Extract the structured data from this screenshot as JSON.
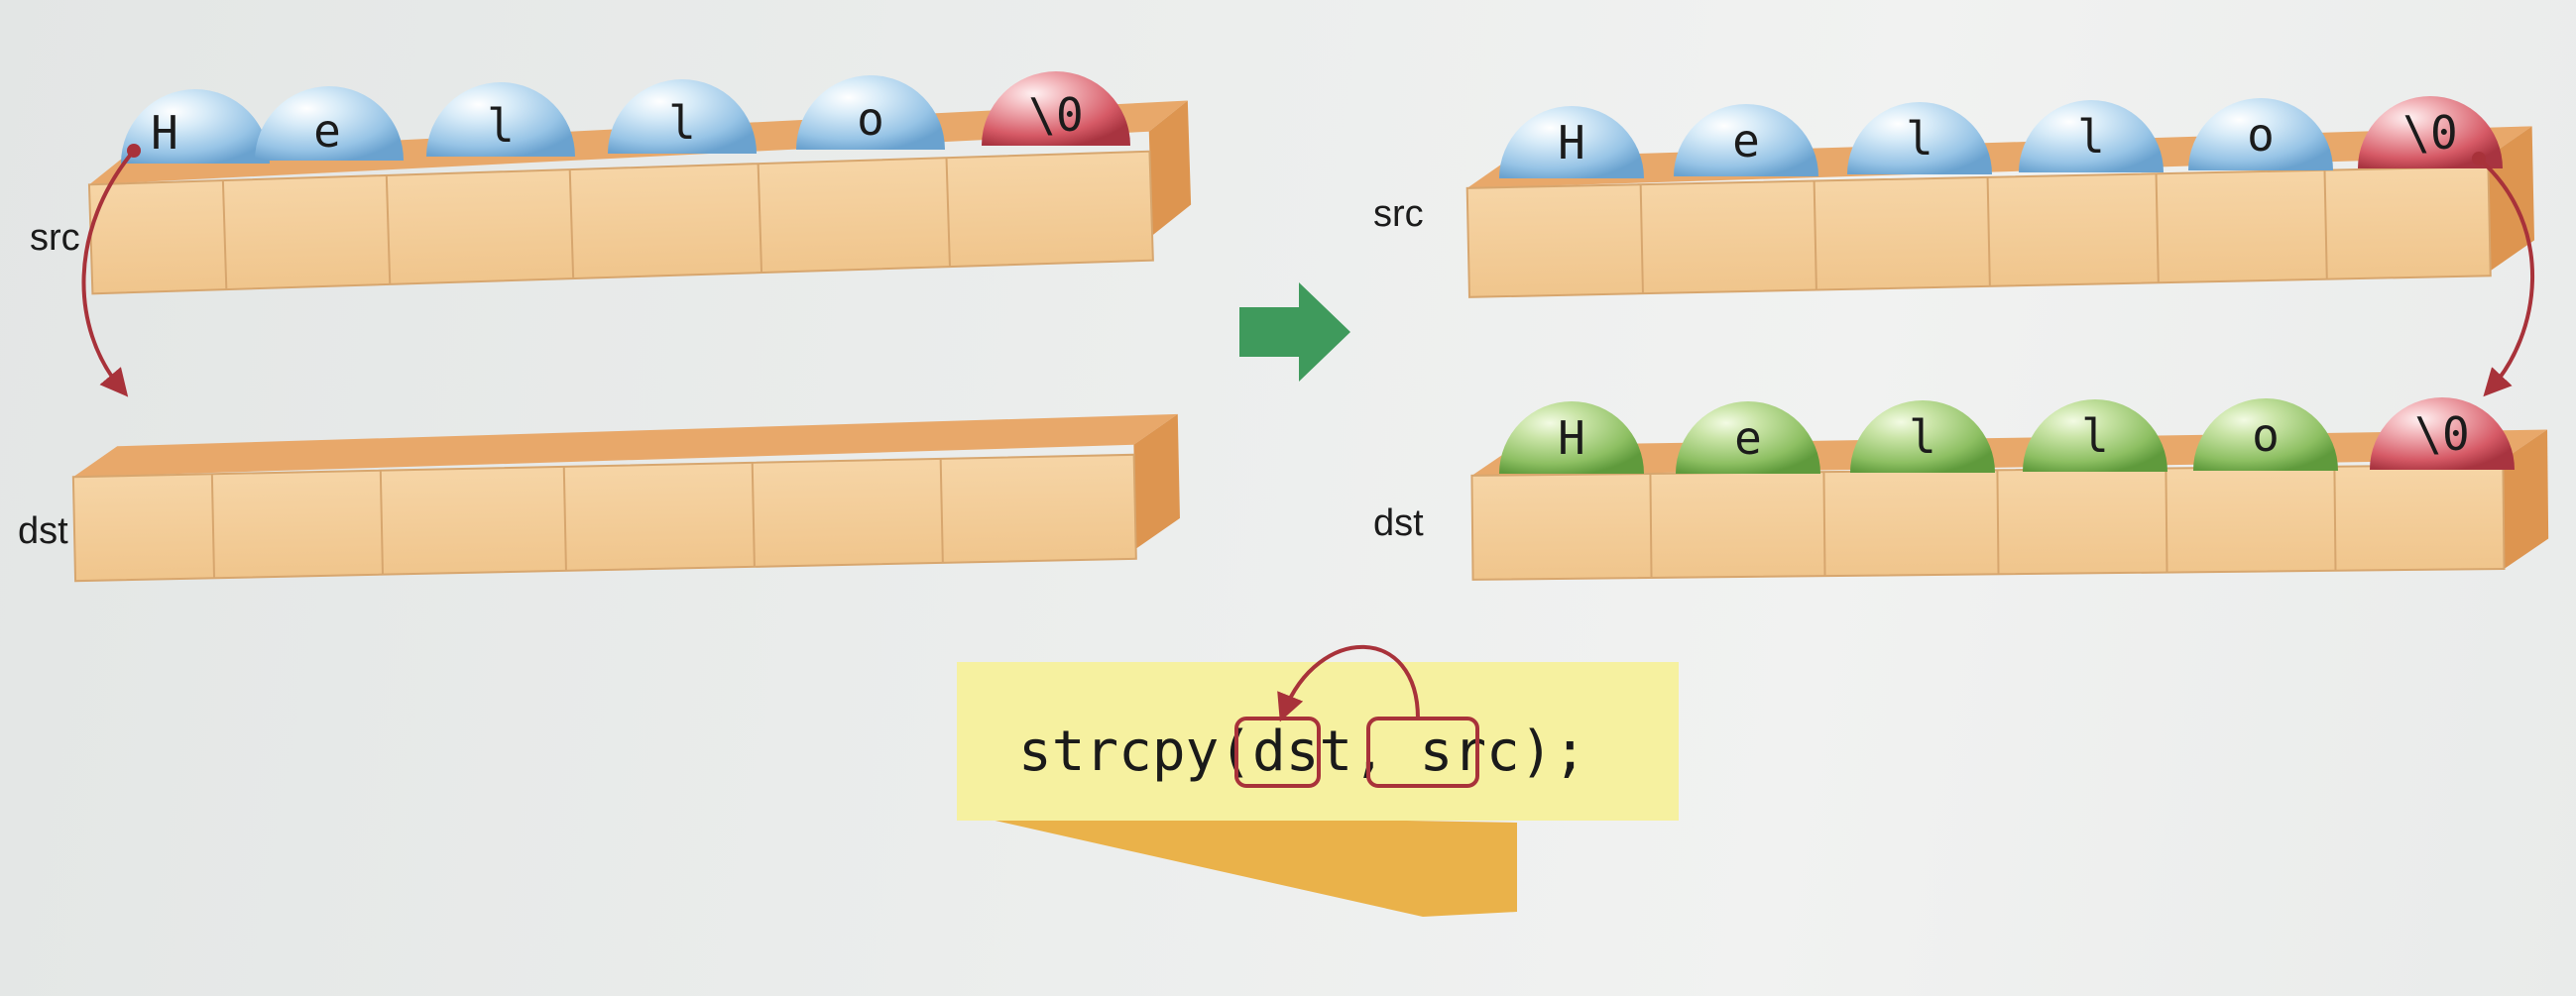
{
  "before": {
    "src_label": "src",
    "dst_label": "dst",
    "src_chars": [
      "H",
      "e",
      "l",
      "l",
      "o",
      "\\0"
    ],
    "dst_chars": []
  },
  "after": {
    "src_label": "src",
    "dst_label": "dst",
    "src_chars": [
      "H",
      "e",
      "l",
      "l",
      "o",
      "\\0"
    ],
    "dst_chars": [
      "H",
      "e",
      "l",
      "l",
      "o",
      "\\0"
    ]
  },
  "code": {
    "func": "strcpy(",
    "arg1": "dst",
    "sep": ", ",
    "arg2": "src",
    "end": ");"
  },
  "colors": {
    "box_face": "#f3cd97",
    "box_top": "#e8a96a",
    "box_side": "#e29c58",
    "ball_blue": "#9fc9e8",
    "ball_green": "#8fc06a",
    "ball_red": "#d85e68",
    "arrow_red": "#a8323a",
    "arrow_green": "#3f9a5c",
    "code_banner": "#f6f1a0",
    "code_fold": "#eab24a"
  }
}
